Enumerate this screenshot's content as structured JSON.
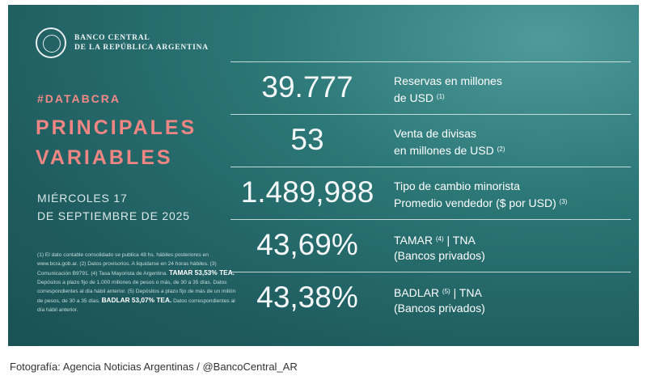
{
  "header": {
    "logo_line1": "BANCO CENTRAL",
    "logo_line2": "DE LA REPÚBLICA ARGENTINA",
    "logo_icon": "bcra-seal-icon"
  },
  "hashtag": "#DATABCRA",
  "title_line1": "PRINCIPALES",
  "title_line2": "VARIABLES",
  "date_line1": "MIÉRCOLES 17",
  "date_line2": "DE SEPTIEMBRE DE 2025",
  "notes": {
    "text1": "(1) El dato contable consolidado se publica 48 hs. hábiles posteriores en www.bcra.gob.ar. (2) Datos provisorios. A liquidarse en 24 horas hábiles. (3) Comunicación B9791. (4) Tasa Mayorista de Argentina.",
    "tamar": "TAMAR 53,53% TEA.",
    "text2": "Depósitos a plazo fijo de 1.000 millones de pesos o más, de 30 a 35 días. Datos correspondientes al día hábil anterior. (5) Depósitos a plazo fijo de más de un millón de pesos, de 30 a 35 días.",
    "badlar": "BADLAR 53,07% TEA.",
    "text3": "Datos correspondientes al día hábil anterior."
  },
  "variables": [
    {
      "value": "39.777",
      "label1": "Reservas en millones",
      "label2": "de USD",
      "sup2": "(1)"
    },
    {
      "value": "53",
      "label1": "Venta de divisas",
      "label2": "en millones de USD",
      "sup2": "(2)"
    },
    {
      "value": "1.489,988",
      "label1": "Tipo de cambio minorista",
      "label2": "Promedio vendedor ($ por USD)",
      "sup2": "(3)"
    },
    {
      "value": "43,69%",
      "label1": "TAMAR",
      "sup1": "(4)",
      "label1b": "| TNA",
      "label2": "(Bancos privados)"
    },
    {
      "value": "43,38%",
      "label1": "BADLAR",
      "sup1": "(5)",
      "label1b": "| TNA",
      "label2": "(Bancos privados)"
    }
  ],
  "caption": "Fotografía: Agencia Noticias Argentinas / @BancoCentral_AR",
  "colors": {
    "background": "#2d7878",
    "accent": "#f08683",
    "text": "#ffffff"
  }
}
